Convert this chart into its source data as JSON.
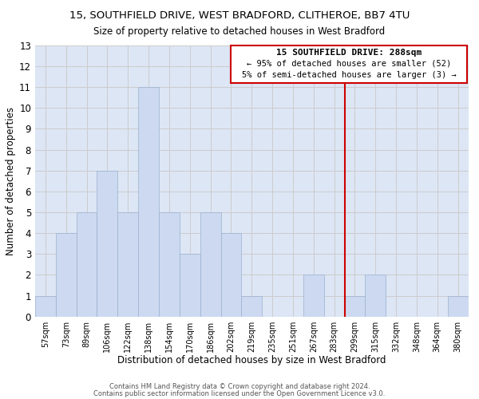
{
  "title": "15, SOUTHFIELD DRIVE, WEST BRADFORD, CLITHEROE, BB7 4TU",
  "subtitle": "Size of property relative to detached houses in West Bradford",
  "xlabel": "Distribution of detached houses by size in West Bradford",
  "ylabel": "Number of detached properties",
  "bin_labels": [
    "57sqm",
    "73sqm",
    "89sqm",
    "106sqm",
    "122sqm",
    "138sqm",
    "154sqm",
    "170sqm",
    "186sqm",
    "202sqm",
    "219sqm",
    "235sqm",
    "251sqm",
    "267sqm",
    "283sqm",
    "299sqm",
    "315sqm",
    "332sqm",
    "348sqm",
    "364sqm",
    "380sqm"
  ],
  "bar_values": [
    1,
    4,
    5,
    7,
    5,
    11,
    5,
    3,
    5,
    4,
    1,
    0,
    0,
    2,
    0,
    1,
    2,
    0,
    0,
    0,
    1
  ],
  "bar_color": "#ccd9f0",
  "bar_edgecolor": "#9ab0d0",
  "grid_color": "#cccccc",
  "vline_color": "#cc0000",
  "annotation_title": "15 SOUTHFIELD DRIVE: 288sqm",
  "annotation_line1": "← 95% of detached houses are smaller (52)",
  "annotation_line2": "5% of semi-detached houses are larger (3) →",
  "annotation_box_color": "#cc0000",
  "ylim": [
    0,
    13
  ],
  "yticks": [
    0,
    1,
    2,
    3,
    4,
    5,
    6,
    7,
    8,
    9,
    10,
    11,
    12,
    13
  ],
  "footer1": "Contains HM Land Registry data © Crown copyright and database right 2024.",
  "footer2": "Contains public sector information licensed under the Open Government Licence v3.0.",
  "background_color": "#dde6f5",
  "fig_background": "#ffffff"
}
